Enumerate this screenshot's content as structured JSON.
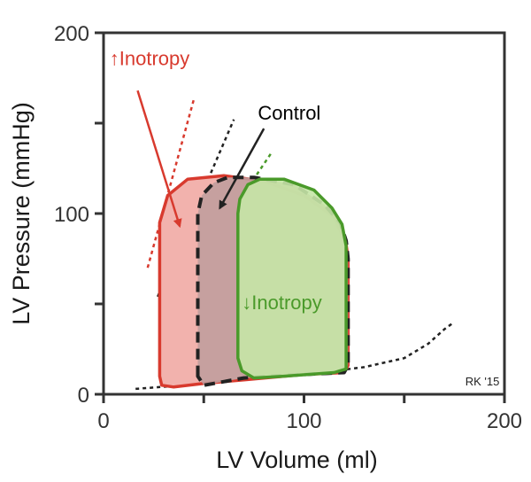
{
  "chart_data": {
    "type": "line",
    "title": "",
    "xlabel": "LV Volume (ml)",
    "ylabel": "LV Pressure (mmHg)",
    "xlim": [
      0,
      200
    ],
    "ylim": [
      0,
      200
    ],
    "x_ticks": [
      0,
      100,
      200
    ],
    "y_ticks": [
      0,
      100,
      200
    ],
    "grid": false,
    "legend": "none",
    "series": [
      {
        "name": "↑Inotropy",
        "color": "#d83a2e",
        "fill": "#f2b2ad",
        "points": [
          [
            28,
            10
          ],
          [
            28,
            95
          ],
          [
            32,
            110
          ],
          [
            42,
            119
          ],
          [
            60,
            121
          ],
          [
            80,
            118
          ],
          [
            100,
            110
          ],
          [
            115,
            98
          ],
          [
            121,
            83
          ],
          [
            122,
            75
          ],
          [
            122,
            16
          ],
          [
            120,
            12
          ],
          [
            100,
            11
          ],
          [
            70,
            8
          ],
          [
            50,
            6
          ],
          [
            35,
            4
          ],
          [
            29,
            5
          ],
          [
            28,
            10
          ]
        ]
      },
      {
        "name": "Control",
        "color": "#222222",
        "fill": "#c19d9d",
        "points": [
          [
            47,
            10
          ],
          [
            47,
            100
          ],
          [
            49,
            110
          ],
          [
            55,
            117
          ],
          [
            62,
            120
          ],
          [
            75,
            120
          ],
          [
            95,
            116
          ],
          [
            110,
            105
          ],
          [
            118,
            95
          ],
          [
            121,
            85
          ],
          [
            122,
            75
          ],
          [
            122,
            16
          ],
          [
            120,
            12
          ],
          [
            100,
            11
          ],
          [
            70,
            9
          ],
          [
            55,
            6
          ],
          [
            50,
            5
          ],
          [
            47,
            10
          ]
        ]
      },
      {
        "name": "↓Inotropy",
        "color": "#4a9a2a",
        "fill": "#c5e6a6",
        "points": [
          [
            67,
            20
          ],
          [
            67,
            100
          ],
          [
            68,
            108
          ],
          [
            72,
            116
          ],
          [
            78,
            119
          ],
          [
            90,
            119
          ],
          [
            105,
            113
          ],
          [
            114,
            103
          ],
          [
            119,
            94
          ],
          [
            121,
            82
          ],
          [
            121,
            20
          ],
          [
            121,
            14
          ],
          [
            115,
            12
          ],
          [
            90,
            10
          ],
          [
            75,
            9
          ],
          [
            69,
            13
          ],
          [
            67,
            20
          ]
        ]
      }
    ],
    "esprvr_lines": [
      {
        "name": "↑Inotropy",
        "color": "#d83a2e",
        "points": [
          [
            22,
            70
          ],
          [
            45,
            163
          ]
        ]
      },
      {
        "name": "Control",
        "color": "#222222",
        "points": [
          [
            27,
            54
          ],
          [
            65,
            152
          ]
        ]
      },
      {
        "name": "↓Inotropy",
        "color": "#4a9a2a",
        "points": [
          [
            33,
            50
          ],
          [
            84,
            134
          ]
        ]
      }
    ],
    "edpvr": {
      "color": "#222222",
      "points": [
        [
          16,
          3
        ],
        [
          40,
          5
        ],
        [
          70,
          8
        ],
        [
          100,
          11
        ],
        [
          130,
          15
        ],
        [
          150,
          20
        ],
        [
          162,
          28
        ],
        [
          170,
          36
        ],
        [
          175,
          40
        ]
      ]
    },
    "annotations": [
      {
        "text": "↑Inotropy",
        "color": "#d83a2e",
        "anchor": [
          3,
          182
        ],
        "arrow_from": [
          17,
          168
        ],
        "arrow_to": [
          38,
          93
        ]
      },
      {
        "text": "Control",
        "color": "#000000",
        "anchor": [
          77,
          152
        ],
        "arrow_from": [
          80,
          147
        ],
        "arrow_to": [
          58,
          103
        ]
      },
      {
        "text": "↓Inotropy",
        "color": "#4a9a2a",
        "anchor": [
          69,
          47
        ]
      }
    ],
    "credit": "RK '15"
  }
}
